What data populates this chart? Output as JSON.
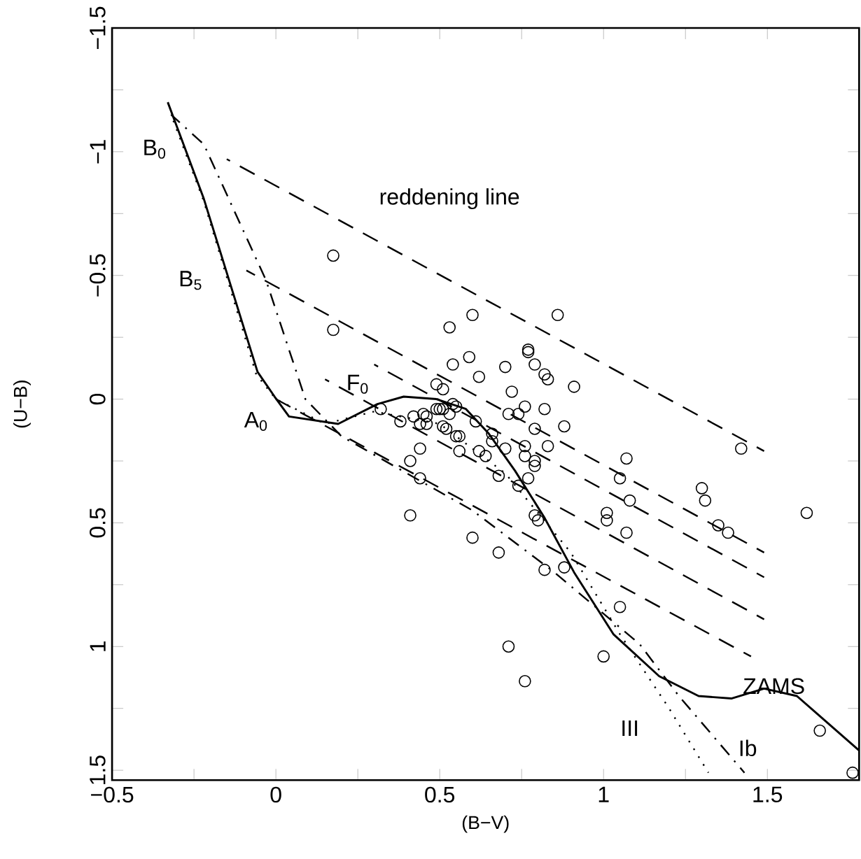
{
  "chart_data": {
    "type": "scatter",
    "xlabel": "(B−V)",
    "ylabel": "(U−B)",
    "xlim": [
      -0.5,
      1.78
    ],
    "ylim": [
      1.54,
      -1.5
    ],
    "xticks": [
      {
        "value": -0.5,
        "label": "−0.5"
      },
      {
        "value": -0.25,
        "label": null
      },
      0,
      {
        "value": 0.25,
        "label": null
      },
      0.5,
      {
        "value": 0.75,
        "label": null
      },
      1,
      {
        "value": 1.25,
        "label": null
      },
      1.5
    ],
    "yticks": [
      {
        "value": -1.5,
        "label": "−1.5"
      },
      {
        "value": -1.25,
        "label": null
      },
      {
        "value": -1,
        "label": "−1"
      },
      {
        "value": -0.75,
        "label": null
      },
      {
        "value": -0.5,
        "label": "−0.5"
      },
      {
        "value": -0.25,
        "label": null
      },
      0,
      {
        "value": 0.25,
        "label": null
      },
      0.5,
      {
        "value": 0.75,
        "label": null
      },
      1,
      {
        "value": 1.25,
        "label": null
      },
      1.5
    ],
    "grid": false,
    "series": [
      {
        "marker": "circle",
        "color": "#000000",
        "x": [
          0.175,
          0.175,
          0.6,
          0.53,
          0.86,
          0.77,
          0.77,
          0.59,
          0.54,
          0.7,
          0.79,
          0.62,
          0.82,
          0.83,
          0.91,
          0.49,
          0.51,
          0.72,
          0.76,
          0.82,
          0.71,
          0.74,
          0.55,
          0.53,
          0.5,
          0.45,
          0.46,
          0.52,
          0.61,
          0.79,
          0.88,
          0.56,
          0.66,
          0.66,
          0.44,
          0.56,
          0.62,
          0.7,
          0.76,
          0.83,
          0.64,
          0.76,
          0.79,
          0.79,
          1.07,
          1.42,
          0.68,
          0.77,
          0.74,
          1.05,
          1.08,
          1.3,
          1.31,
          1.01,
          1.01,
          1.07,
          1.35,
          1.38,
          1.62,
          0.79,
          0.8,
          0.6,
          0.68,
          0.82,
          0.88,
          1.05,
          0.71,
          0.76,
          1.0,
          1.66,
          1.76,
          0.32,
          0.38,
          0.42,
          0.44,
          0.46,
          0.49,
          0.51,
          0.54,
          0.51,
          0.55,
          0.41,
          0.44,
          0.41
        ],
        "values": [
          -0.58,
          -0.28,
          -0.34,
          -0.29,
          -0.34,
          -0.2,
          -0.19,
          -0.17,
          -0.14,
          -0.13,
          -0.14,
          -0.09,
          -0.1,
          -0.08,
          -0.05,
          -0.06,
          -0.04,
          -0.03,
          0.03,
          0.04,
          0.06,
          0.06,
          0.03,
          0.06,
          0.04,
          0.06,
          0.1,
          0.12,
          0.09,
          0.12,
          0.11,
          0.15,
          0.14,
          0.17,
          0.2,
          0.21,
          0.21,
          0.2,
          0.19,
          0.19,
          0.23,
          0.23,
          0.25,
          0.27,
          0.24,
          0.2,
          0.31,
          0.32,
          0.35,
          0.32,
          0.41,
          0.36,
          0.41,
          0.46,
          0.49,
          0.54,
          0.51,
          0.54,
          0.46,
          0.47,
          0.49,
          0.56,
          0.62,
          0.69,
          0.68,
          0.84,
          1.0,
          1.14,
          1.04,
          1.34,
          1.51,
          0.04,
          0.09,
          0.07,
          0.1,
          0.07,
          0.04,
          0.04,
          0.02,
          0.11,
          0.15,
          0.25,
          0.32,
          0.47
        ]
      },
      {
        "type": "line",
        "line_style": "solid",
        "color": "#000000",
        "x": [
          -0.33,
          -0.22,
          -0.056,
          -0.004,
          0.04,
          0.19,
          0.31,
          0.39,
          0.49,
          0.58,
          0.65,
          0.73,
          0.82,
          0.91,
          1.03,
          1.17,
          1.29,
          1.39,
          1.49,
          1.59,
          1.78
        ],
        "values": [
          -1.2,
          -0.81,
          -0.11,
          -0.01,
          0.07,
          0.1,
          0.02,
          -0.01,
          0.0,
          0.04,
          0.14,
          0.29,
          0.48,
          0.7,
          0.95,
          1.12,
          1.2,
          1.21,
          1.17,
          1.2,
          1.42
        ]
      },
      {
        "type": "line",
        "line_style": "dotted",
        "color": "#000000",
        "x": [
          -0.32,
          -0.22,
          -0.06,
          0.0,
          0.15,
          0.3,
          0.5,
          0.7,
          0.9,
          1.05,
          1.2,
          1.32
        ],
        "values": [
          -1.15,
          -0.8,
          -0.1,
          0.0,
          0.1,
          0.05,
          0.1,
          0.3,
          0.62,
          0.95,
          1.25,
          1.51
        ]
      },
      {
        "type": "line",
        "line_style": "dashdot",
        "color": "#000000",
        "x": [
          -0.32,
          -0.22,
          -0.03,
          0.09,
          0.2,
          0.4,
          0.6,
          0.85,
          1.11,
          1.23,
          1.43
        ],
        "values": [
          -1.15,
          -1.03,
          -0.48,
          0.0,
          0.15,
          0.3,
          0.45,
          0.7,
          0.99,
          1.2,
          1.51
        ]
      },
      {
        "type": "line",
        "line_style": "dashed",
        "color": "#000000",
        "x": [
          -0.15,
          1.49
        ],
        "values": [
          -0.97,
          0.21
        ]
      },
      {
        "type": "line",
        "line_style": "dashed",
        "color": "#000000",
        "x": [
          -0.09,
          1.49
        ],
        "values": [
          -0.52,
          0.62
        ]
      },
      {
        "type": "line",
        "line_style": "dashed",
        "color": "#000000",
        "x": [
          0.3,
          1.49
        ],
        "values": [
          -0.14,
          0.72
        ]
      },
      {
        "type": "line",
        "line_style": "dashed",
        "color": "#000000",
        "x": [
          0.15,
          1.49
        ],
        "values": [
          -0.08,
          0.89
        ]
      },
      {
        "type": "line",
        "line_style": "dashed",
        "color": "#000000",
        "x": [
          0.0,
          1.45
        ],
        "values": [
          0.0,
          1.04
        ]
      }
    ],
    "annotations": [
      "reddening line",
      "B$_{0}$",
      "B$_{5}$",
      "F$_{0}$",
      "A$_{0}$",
      "III",
      "ZAMS",
      "Ib"
    ]
  }
}
